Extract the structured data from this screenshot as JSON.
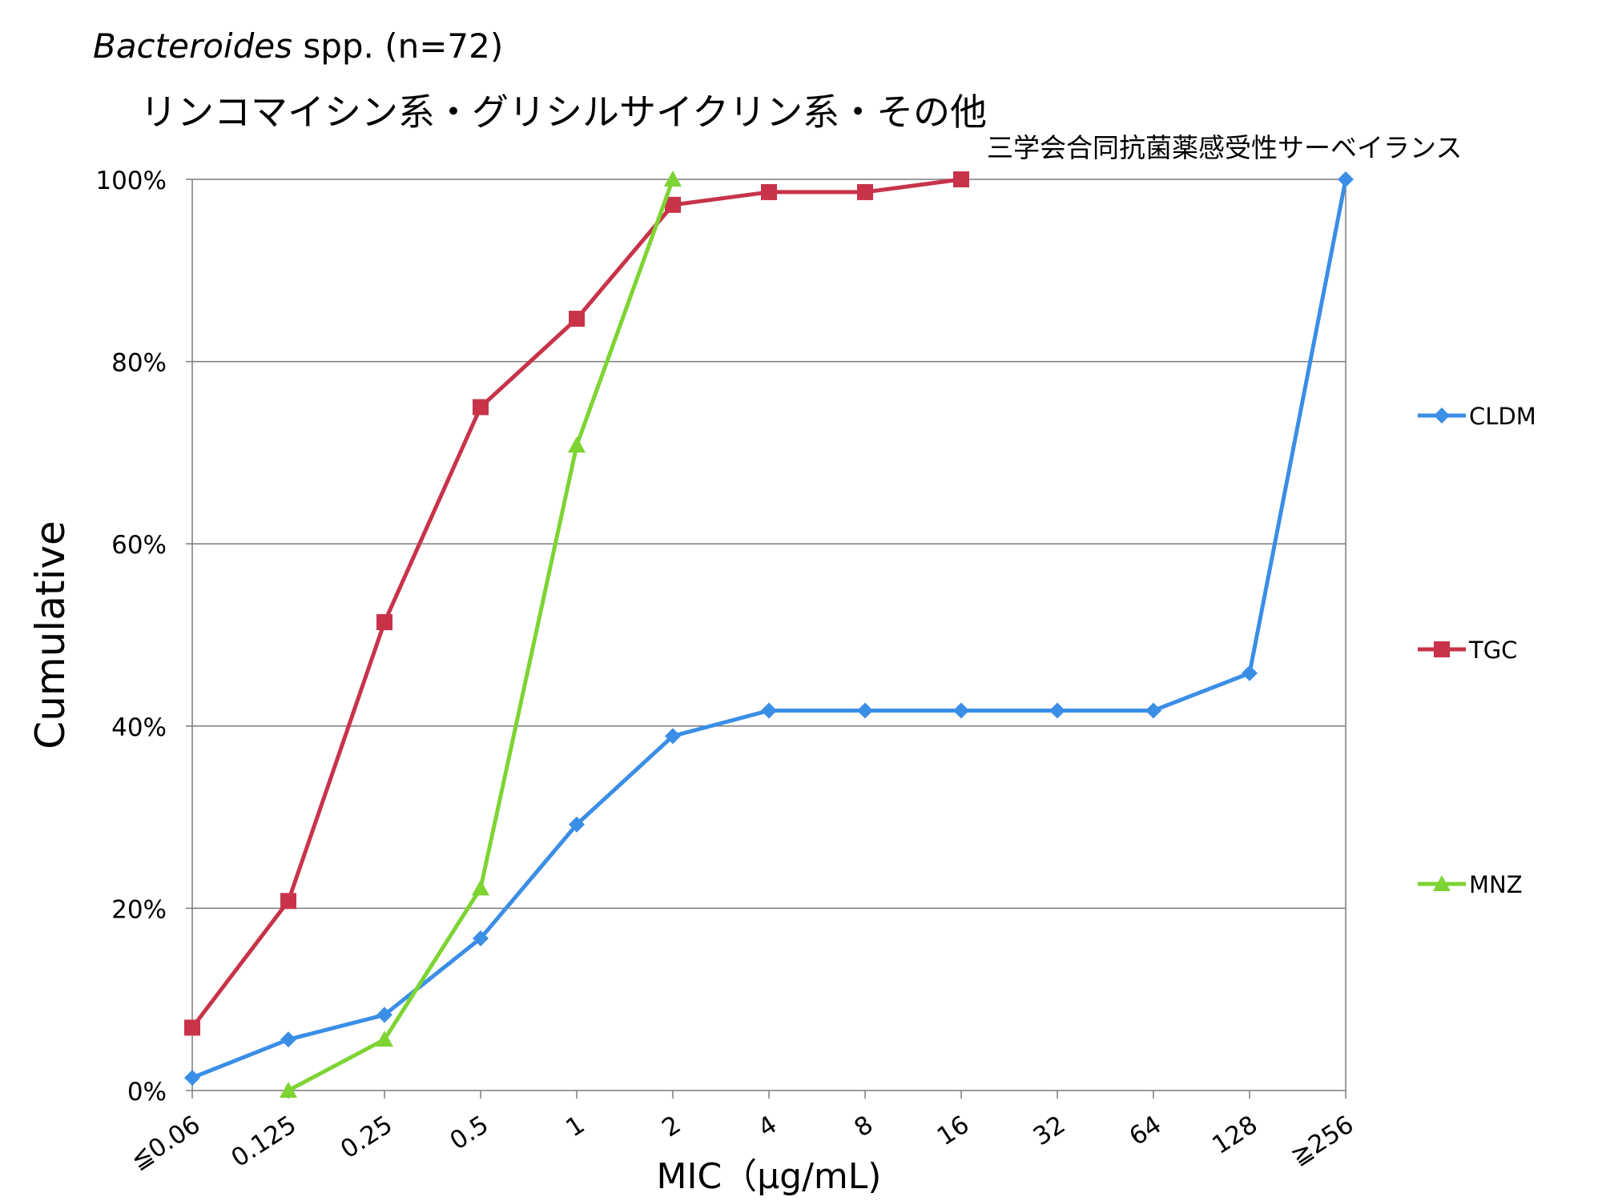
{
  "title": "Bacteroides spp. (n=72)",
  "title_italic_part": "Bacteroides",
  "title_plain_part": " spp. (n=72)",
  "subtitle": "リンコマイシン系・グリシルサイクリン系・その他",
  "source_note": "三学会合同抗菌薬感受性サーベイランス",
  "chart_data": {
    "type": "line",
    "categories": [
      "≦0.06",
      "0.125",
      "0.25",
      "0.5",
      "1",
      "2",
      "4",
      "8",
      "16",
      "32",
      "64",
      "128",
      "≧256"
    ],
    "xlabel": "MIC（μg/mL)",
    "ylabel": "Cumulative",
    "ylim": [
      0,
      100
    ],
    "yticks": [
      "0%",
      "20%",
      "40%",
      "60%",
      "80%",
      "100%"
    ],
    "ytick_values": [
      0,
      20,
      40,
      60,
      80,
      100
    ],
    "grid": true,
    "legend_position": "right",
    "series": [
      {
        "name": "CLDM",
        "color": "#3a8ee6",
        "marker": "diamond",
        "values": [
          1.4,
          5.6,
          8.3,
          16.7,
          29.2,
          38.9,
          41.7,
          41.7,
          41.7,
          41.7,
          41.7,
          45.8,
          100
        ]
      },
      {
        "name": "TGC",
        "color": "#c8334a",
        "marker": "square",
        "values": [
          6.9,
          20.8,
          51.4,
          75.0,
          84.7,
          97.2,
          98.6,
          98.6,
          100,
          null,
          null,
          null,
          null
        ]
      },
      {
        "name": "MNZ",
        "color": "#7dd433",
        "marker": "triangle",
        "values": [
          null,
          0,
          5.6,
          22.2,
          70.8,
          100,
          null,
          null,
          null,
          null,
          null,
          null,
          null
        ]
      }
    ]
  }
}
